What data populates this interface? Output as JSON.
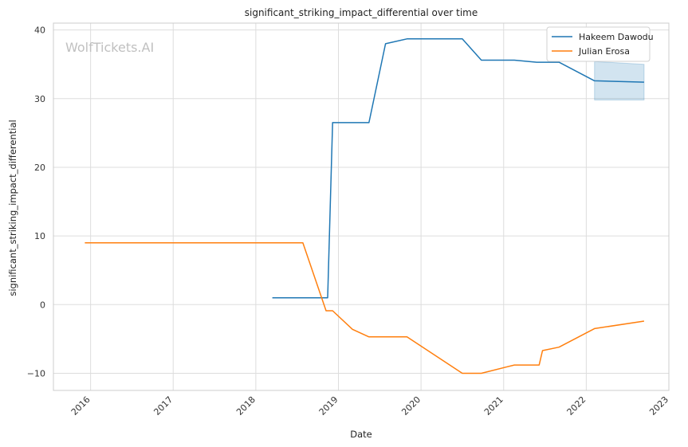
{
  "chart_data": {
    "type": "line",
    "title": "significant_striking_impact_differential over time",
    "xlabel": "Date",
    "ylabel": "significant_striking_impact_differential",
    "watermark": "WolfTickets.AI",
    "x_ticks": [
      "2016",
      "2017",
      "2018",
      "2019",
      "2020",
      "2021",
      "2022",
      "2023"
    ],
    "y_ticks": [
      -10,
      0,
      10,
      20,
      30,
      40
    ],
    "xlim": [
      2015.55,
      2023.0
    ],
    "ylim": [
      -12.5,
      41.0
    ],
    "grid": true,
    "legend_position": "top-right",
    "series": [
      {
        "name": "Hakeem Dawodu",
        "color": "#1f77b4",
        "points": [
          [
            2018.2,
            1.0
          ],
          [
            2018.87,
            1.0
          ],
          [
            2018.93,
            26.5
          ],
          [
            2019.37,
            26.5
          ],
          [
            2019.57,
            38.0
          ],
          [
            2019.83,
            38.7
          ],
          [
            2020.5,
            38.7
          ],
          [
            2020.73,
            35.6
          ],
          [
            2021.13,
            35.6
          ],
          [
            2021.4,
            35.3
          ],
          [
            2021.67,
            35.3
          ],
          [
            2022.1,
            32.6
          ],
          [
            2022.7,
            32.4
          ]
        ],
        "band": {
          "x": [
            2022.1,
            2022.7
          ],
          "lower": [
            29.8,
            29.8
          ],
          "upper": [
            35.4,
            35.0
          ]
        }
      },
      {
        "name": "Julian Erosa",
        "color": "#ff7f0e",
        "points": [
          [
            2015.93,
            9.0
          ],
          [
            2018.57,
            9.0
          ],
          [
            2018.85,
            -0.9
          ],
          [
            2018.93,
            -0.9
          ],
          [
            2019.17,
            -3.6
          ],
          [
            2019.37,
            -4.7
          ],
          [
            2019.83,
            -4.7
          ],
          [
            2020.5,
            -10.0
          ],
          [
            2020.73,
            -10.0
          ],
          [
            2021.13,
            -8.8
          ],
          [
            2021.43,
            -8.8
          ],
          [
            2021.47,
            -6.7
          ],
          [
            2021.67,
            -6.2
          ],
          [
            2022.1,
            -3.5
          ],
          [
            2022.7,
            -2.4
          ]
        ]
      }
    ]
  }
}
